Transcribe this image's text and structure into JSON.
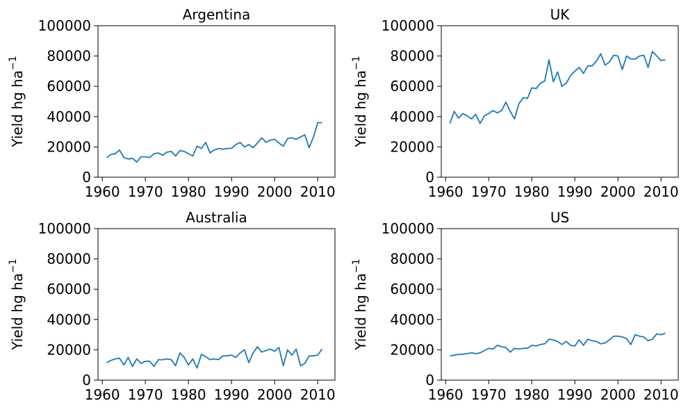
{
  "chart_data": [
    {
      "type": "line",
      "title": "Argentina",
      "xlabel": "",
      "ylabel": "Yield hg ha",
      "ylabel_superscript": "−1",
      "xlim": [
        1959,
        2014
      ],
      "ylim": [
        0,
        100000
      ],
      "xticks": [
        1960,
        1970,
        1980,
        1990,
        2000,
        2010
      ],
      "yticks": [
        0,
        20000,
        40000,
        60000,
        80000,
        100000
      ],
      "color": "#1f77b4",
      "x": [
        1961,
        1962,
        1963,
        1964,
        1965,
        1966,
        1967,
        1968,
        1969,
        1970,
        1971,
        1972,
        1973,
        1974,
        1975,
        1976,
        1977,
        1978,
        1979,
        1980,
        1981,
        1982,
        1983,
        1984,
        1985,
        1986,
        1987,
        1988,
        1989,
        1990,
        1991,
        1992,
        1993,
        1994,
        1995,
        1996,
        1997,
        1998,
        1999,
        2000,
        2001,
        2002,
        2003,
        2004,
        2005,
        2006,
        2007,
        2008,
        2009,
        2010,
        2011
      ],
      "y": [
        13000,
        15000,
        15500,
        18000,
        13000,
        12000,
        12500,
        10000,
        13500,
        13500,
        13000,
        15500,
        16000,
        14500,
        16500,
        17000,
        14000,
        17500,
        17000,
        15500,
        14000,
        20500,
        19000,
        23000,
        16000,
        18000,
        19000,
        18500,
        19000,
        19000,
        21500,
        23000,
        20000,
        21500,
        19500,
        22500,
        26000,
        23000,
        24500,
        25000,
        22500,
        20500,
        25500,
        26000,
        25000,
        26500,
        28000,
        19500,
        26500,
        36000,
        36000
      ]
    },
    {
      "type": "line",
      "title": "UK",
      "xlabel": "",
      "ylabel": "Yield hg ha",
      "ylabel_superscript": "−1",
      "xlim": [
        1959,
        2014
      ],
      "ylim": [
        0,
        100000
      ],
      "xticks": [
        1960,
        1970,
        1980,
        1990,
        2000,
        2010
      ],
      "yticks": [
        0,
        20000,
        40000,
        60000,
        80000,
        100000
      ],
      "color": "#1f77b4",
      "x": [
        1961,
        1962,
        1963,
        1964,
        1965,
        1966,
        1967,
        1968,
        1969,
        1970,
        1971,
        1972,
        1973,
        1974,
        1975,
        1976,
        1977,
        1978,
        1979,
        1980,
        1981,
        1982,
        1983,
        1984,
        1985,
        1986,
        1987,
        1988,
        1989,
        1990,
        1991,
        1992,
        1993,
        1994,
        1995,
        1996,
        1997,
        1998,
        1999,
        2000,
        2001,
        2002,
        2003,
        2004,
        2005,
        2006,
        2007,
        2008,
        2009,
        2010,
        2011
      ],
      "y": [
        35500,
        43500,
        39000,
        42000,
        40500,
        38500,
        41500,
        35500,
        40500,
        42000,
        44000,
        42500,
        44000,
        49500,
        43500,
        38500,
        48500,
        52500,
        52000,
        59000,
        58500,
        62000,
        63500,
        77500,
        63000,
        69500,
        60000,
        62000,
        67000,
        70000,
        72500,
        68500,
        73500,
        73500,
        76500,
        81500,
        74000,
        76000,
        80500,
        80000,
        71000,
        80000,
        78000,
        78000,
        80000,
        80500,
        72500,
        83000,
        80000,
        77000,
        77500
      ]
    },
    {
      "type": "line",
      "title": "Australia",
      "xlabel": "",
      "ylabel": "Yield hg ha",
      "ylabel_superscript": "−1",
      "xlim": [
        1959,
        2014
      ],
      "ylim": [
        0,
        100000
      ],
      "xticks": [
        1960,
        1970,
        1980,
        1990,
        2000,
        2010
      ],
      "yticks": [
        0,
        20000,
        40000,
        60000,
        80000,
        100000
      ],
      "color": "#1f77b4",
      "x": [
        1961,
        1962,
        1963,
        1964,
        1965,
        1966,
        1967,
        1968,
        1969,
        1970,
        1971,
        1972,
        1973,
        1974,
        1975,
        1976,
        1977,
        1978,
        1979,
        1980,
        1981,
        1982,
        1983,
        1984,
        1985,
        1986,
        1987,
        1988,
        1989,
        1990,
        1991,
        1992,
        1993,
        1994,
        1995,
        1996,
        1997,
        1998,
        1999,
        2000,
        2001,
        2002,
        2003,
        2004,
        2005,
        2006,
        2007,
        2008,
        2009,
        2010,
        2011
      ],
      "y": [
        11500,
        13000,
        14000,
        14500,
        10000,
        15000,
        9000,
        14000,
        11000,
        12500,
        12500,
        9000,
        13500,
        13500,
        14000,
        13500,
        9500,
        18000,
        15000,
        10000,
        14000,
        8000,
        17000,
        15500,
        13500,
        14000,
        13500,
        16000,
        16000,
        16500,
        15000,
        18000,
        20000,
        11500,
        18000,
        22000,
        18500,
        19500,
        20500,
        19000,
        21500,
        9500,
        20000,
        16500,
        20500,
        9500,
        11000,
        16000,
        16000,
        16500,
        20500
      ]
    },
    {
      "type": "line",
      "title": "US",
      "xlabel": "",
      "ylabel": "Yield hg ha",
      "ylabel_superscript": "−1",
      "xlim": [
        1959,
        2014
      ],
      "ylim": [
        0,
        100000
      ],
      "xticks": [
        1960,
        1970,
        1980,
        1990,
        2000,
        2010
      ],
      "yticks": [
        0,
        20000,
        40000,
        60000,
        80000,
        100000
      ],
      "color": "#1f77b4",
      "x": [
        1961,
        1962,
        1963,
        1964,
        1965,
        1966,
        1967,
        1968,
        1969,
        1970,
        1971,
        1972,
        1973,
        1974,
        1975,
        1976,
        1977,
        1978,
        1979,
        1980,
        1981,
        1982,
        1983,
        1984,
        1985,
        1986,
        1987,
        1988,
        1989,
        1990,
        1991,
        1992,
        1993,
        1994,
        1995,
        1996,
        1997,
        1998,
        1999,
        2000,
        2001,
        2002,
        2003,
        2004,
        2005,
        2006,
        2007,
        2008,
        2009,
        2010,
        2011
      ],
      "y": [
        16000,
        16500,
        17000,
        17000,
        17500,
        18000,
        17500,
        18000,
        19500,
        21000,
        20500,
        23000,
        22000,
        21500,
        18500,
        21000,
        20500,
        21000,
        21000,
        23000,
        22500,
        23500,
        24000,
        27000,
        26500,
        25500,
        23500,
        25500,
        23000,
        22500,
        26500,
        23000,
        27000,
        26000,
        25500,
        24000,
        24500,
        26500,
        29000,
        29000,
        28500,
        27500,
        23500,
        30000,
        29000,
        28500,
        26000,
        27000,
        30500,
        30000,
        31000
      ]
    }
  ]
}
